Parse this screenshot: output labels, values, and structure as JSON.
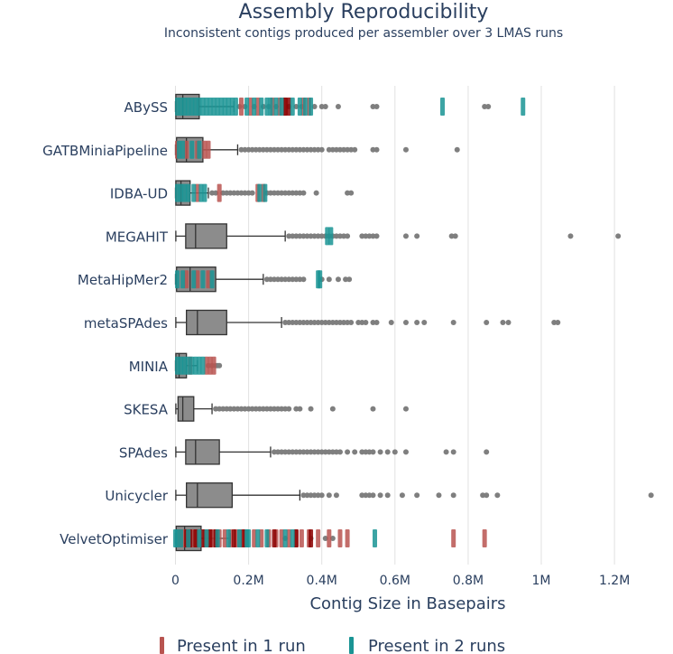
{
  "chart_data": {
    "type": "box",
    "title": "Assembly Reproducibility",
    "subtitle": "Inconsistent contigs produced per assembler over 3 LMAS runs",
    "xlabel": "Contig Size in Basepairs",
    "xlim": [
      -90000,
      1360000
    ],
    "xticks": [
      0,
      200000,
      400000,
      600000,
      800000,
      1000000,
      1200000
    ],
    "xtick_labels": [
      "0",
      "0.2M",
      "0.4M",
      "0.6M",
      "0.8M",
      "1M",
      "1.2M"
    ],
    "grid": true,
    "colors": {
      "box_fill": "#8c8c8c",
      "box_line": "#333333",
      "outlier": "#7f7f7f",
      "run1": "#b85450",
      "run1_dark": "#8b0000",
      "run2": "#1a9494",
      "grid": "#e1e1e1",
      "text": "#2a3f5f"
    },
    "legend": {
      "position": "bottom",
      "entries": [
        {
          "label": "Present in 1 run",
          "color": "#b85450"
        },
        {
          "label": "Present in 2 runs",
          "color": "#1a9494"
        }
      ]
    },
    "assemblers": [
      {
        "name": "ABySS",
        "min": 0,
        "q1": 1000,
        "median": 20000,
        "q3": 65000,
        "max": 160000,
        "outliers": [
          175000,
          190000,
          215000,
          240000,
          255000,
          275000,
          310000,
          330000,
          345000,
          380000,
          400000,
          410000,
          445000,
          540000,
          550000,
          845000,
          855000
        ],
        "run1": [
          180000,
          205000,
          225000,
          265000,
          285000,
          300000,
          350000,
          365000
        ],
        "run1_dark": [
          300000,
          310000
        ],
        "run2": [
          5000,
          15000,
          25000,
          35000,
          45000,
          55000,
          65000,
          75000,
          85000,
          95000,
          105000,
          115000,
          125000,
          135000,
          145000,
          155000,
          165000,
          195000,
          215000,
          235000,
          250000,
          260000,
          275000,
          290000,
          320000,
          340000,
          355000,
          370000,
          730000,
          950000
        ]
      },
      {
        "name": "GATBMiniaPipeline",
        "min": 0,
        "q1": 3000,
        "median": 30000,
        "q3": 75000,
        "max": 170000,
        "outliers": [
          180000,
          190000,
          200000,
          210000,
          220000,
          230000,
          240000,
          250000,
          260000,
          270000,
          280000,
          290000,
          300000,
          310000,
          320000,
          330000,
          340000,
          350000,
          360000,
          370000,
          380000,
          390000,
          400000,
          420000,
          430000,
          440000,
          450000,
          460000,
          470000,
          480000,
          490000,
          540000,
          550000,
          630000,
          770000
        ],
        "run1": [
          5000,
          30000,
          60000,
          80000,
          90000
        ],
        "run1_dark": [],
        "run2": [
          10000,
          20000,
          45000,
          65000
        ]
      },
      {
        "name": "IDBA-UD",
        "min": 0,
        "q1": 1000,
        "median": 15000,
        "q3": 40000,
        "max": 90000,
        "outliers": [
          100000,
          110000,
          130000,
          140000,
          150000,
          160000,
          170000,
          180000,
          190000,
          200000,
          210000,
          250000,
          260000,
          270000,
          280000,
          290000,
          300000,
          310000,
          320000,
          330000,
          340000,
          350000,
          385000,
          470000,
          480000
        ],
        "run1": [
          60000,
          120000,
          225000,
          240000
        ],
        "run1_dark": [],
        "run2": [
          5000,
          15000,
          25000,
          35000,
          50000,
          70000,
          80000,
          230000,
          245000
        ]
      },
      {
        "name": "MEGAHIT",
        "min": 1000,
        "q1": 28000,
        "median": 55000,
        "q3": 140000,
        "max": 300000,
        "outliers": [
          310000,
          320000,
          330000,
          340000,
          350000,
          360000,
          370000,
          380000,
          390000,
          400000,
          410000,
          420000,
          430000,
          440000,
          450000,
          460000,
          470000,
          510000,
          520000,
          530000,
          540000,
          550000,
          630000,
          660000,
          755000,
          765000,
          1080000,
          1210000
        ],
        "run1": [],
        "run1_dark": [],
        "run2": [
          415000,
          425000
        ]
      },
      {
        "name": "MetaHipMer2",
        "min": 0,
        "q1": 3000,
        "median": 40000,
        "q3": 110000,
        "max": 240000,
        "outliers": [
          250000,
          260000,
          270000,
          280000,
          290000,
          300000,
          310000,
          320000,
          330000,
          340000,
          350000,
          400000,
          420000,
          445000,
          465000,
          475000
        ],
        "run1": [
          30000,
          60000,
          90000
        ],
        "run1_dark": [],
        "run2": [
          5000,
          20000,
          50000,
          75000,
          100000,
          390000,
          395000
        ]
      },
      {
        "name": "metaSPAdes",
        "min": 1000,
        "q1": 30000,
        "median": 60000,
        "q3": 140000,
        "max": 290000,
        "outliers": [
          300000,
          310000,
          320000,
          330000,
          340000,
          350000,
          360000,
          370000,
          380000,
          390000,
          400000,
          410000,
          420000,
          430000,
          440000,
          450000,
          460000,
          470000,
          480000,
          500000,
          510000,
          520000,
          540000,
          550000,
          590000,
          630000,
          660000,
          680000,
          760000,
          850000,
          895000,
          910000,
          1035000,
          1045000
        ],
        "run1": [],
        "run1_dark": [],
        "run2": []
      },
      {
        "name": "MINIA",
        "min": 0,
        "q1": 1000,
        "median": 10000,
        "q3": 30000,
        "max": 60000,
        "outliers": [
          90000,
          100000,
          110000,
          115000,
          120000
        ],
        "run1": [
          40000,
          85000,
          95000,
          105000
        ],
        "run1_dark": [],
        "run2": [
          5000,
          15000,
          25000,
          35000,
          45000,
          55000,
          65000,
          75000
        ]
      },
      {
        "name": "SKESA",
        "min": 1000,
        "q1": 7000,
        "median": 20000,
        "q3": 50000,
        "max": 100000,
        "outliers": [
          110000,
          120000,
          130000,
          140000,
          150000,
          160000,
          170000,
          180000,
          190000,
          200000,
          210000,
          220000,
          230000,
          240000,
          250000,
          260000,
          270000,
          280000,
          290000,
          300000,
          310000,
          330000,
          340000,
          370000,
          430000,
          540000,
          630000
        ],
        "run1": [],
        "run1_dark": [],
        "run2": []
      },
      {
        "name": "SPAdes",
        "min": 1000,
        "q1": 28000,
        "median": 55000,
        "q3": 120000,
        "max": 260000,
        "outliers": [
          270000,
          280000,
          290000,
          300000,
          310000,
          320000,
          330000,
          340000,
          350000,
          360000,
          370000,
          380000,
          390000,
          400000,
          410000,
          420000,
          430000,
          440000,
          450000,
          470000,
          490000,
          510000,
          520000,
          530000,
          540000,
          560000,
          580000,
          600000,
          630000,
          740000,
          760000,
          850000
        ],
        "run1": [],
        "run1_dark": [],
        "run2": []
      },
      {
        "name": "Unicycler",
        "min": 1000,
        "q1": 30000,
        "median": 60000,
        "q3": 155000,
        "max": 340000,
        "outliers": [
          350000,
          360000,
          370000,
          380000,
          390000,
          400000,
          420000,
          440000,
          510000,
          520000,
          530000,
          540000,
          560000,
          580000,
          620000,
          660000,
          720000,
          760000,
          840000,
          850000,
          880000,
          1300000
        ],
        "run1": [],
        "run1_dark": [],
        "run2": []
      },
      {
        "name": "VelvetOptimiser",
        "min": 0,
        "q1": 2000,
        "median": 25000,
        "q3": 70000,
        "max": 150000,
        "outliers": [
          300000,
          370000,
          410000,
          430000
        ],
        "run1": [
          10000,
          20000,
          30000,
          50000,
          60000,
          80000,
          90000,
          100000,
          110000,
          120000,
          135000,
          150000,
          165000,
          175000,
          190000,
          215000,
          235000,
          255000,
          275000,
          290000,
          310000,
          330000,
          345000,
          365000,
          390000,
          420000,
          450000,
          470000,
          760000,
          845000
        ],
        "run1_dark": [
          30000,
          40000,
          55000,
          75000,
          95000,
          110000,
          160000,
          185000,
          270000,
          330000,
          370000
        ],
        "run2": [
          0,
          5000,
          15000,
          35000,
          65000,
          85000,
          115000,
          145000,
          175000,
          195000,
          200000,
          225000,
          250000,
          300000,
          320000,
          545000
        ]
      }
    ]
  }
}
